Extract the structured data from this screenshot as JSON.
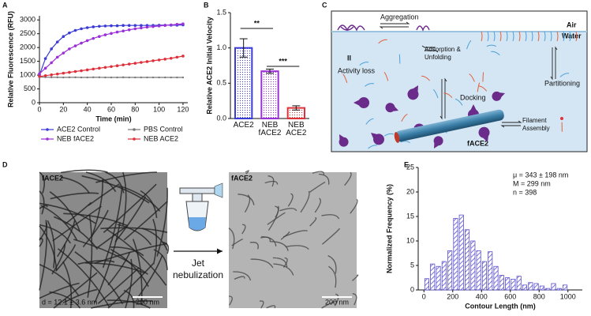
{
  "chart_data": [
    {
      "type": "line",
      "panel": "A",
      "x_label": "Time (min)",
      "y_label": "Relative Fluorescence (RFU)",
      "x": [
        0,
        5,
        10,
        15,
        20,
        25,
        30,
        35,
        40,
        45,
        50,
        55,
        60,
        65,
        70,
        75,
        80,
        85,
        90,
        95,
        100,
        105,
        110,
        115,
        120
      ],
      "series": [
        {
          "name": "ACE2 Control",
          "color": "#3b3bd6",
          "values": [
            1000,
            1600,
            1950,
            2200,
            2400,
            2530,
            2620,
            2680,
            2720,
            2750,
            2770,
            2780,
            2790,
            2790,
            2800,
            2800,
            2800,
            2800,
            2800,
            2800,
            2810,
            2810,
            2810,
            2810,
            2820
          ]
        },
        {
          "name": "NEB fACE2",
          "color": "#9b30d9",
          "values": [
            1050,
            1250,
            1450,
            1650,
            1800,
            1950,
            2060,
            2160,
            2250,
            2330,
            2400,
            2460,
            2510,
            2560,
            2600,
            2640,
            2680,
            2710,
            2740,
            2760,
            2780,
            2800,
            2820,
            2840,
            2860
          ]
        },
        {
          "name": "PBS Control",
          "color": "#777777",
          "values": [
            930,
            925,
            920,
            920,
            915,
            920,
            920,
            915,
            915,
            920,
            920,
            915,
            915,
            915,
            920,
            915,
            915,
            915,
            915,
            915,
            915,
            915,
            915,
            915,
            915
          ]
        },
        {
          "name": "NEB ACE2",
          "color": "#e0303a",
          "values": [
            950,
            980,
            1010,
            1040,
            1070,
            1100,
            1130,
            1160,
            1190,
            1220,
            1250,
            1280,
            1310,
            1340,
            1370,
            1400,
            1430,
            1460,
            1490,
            1520,
            1550,
            1580,
            1610,
            1650,
            1690
          ]
        }
      ],
      "xlim": [
        0,
        124
      ],
      "xticks": [
        0,
        20,
        40,
        60,
        80,
        100,
        120
      ],
      "ylim": [
        0,
        3150
      ],
      "yticks": [
        0,
        500,
        1000,
        1500,
        2000,
        2500,
        3000
      ]
    },
    {
      "type": "bar",
      "panel": "B",
      "y_label": "Relative ACE2 Initial Velocity",
      "categories": [
        "ACE2",
        "NEB fACE2",
        "NEB ACE2"
      ],
      "values": [
        1.0,
        0.67,
        0.15
      ],
      "errors": [
        0.13,
        0.03,
        0.03
      ],
      "colors": [
        "#3b3bd6",
        "#9b30d9",
        "#e0303a"
      ],
      "significance": [
        "**",
        "***"
      ],
      "ylim": [
        0,
        1.5
      ],
      "yticks": [
        {
          "value": 0,
          "label": "0.0"
        },
        0.5,
        {
          "value": 1,
          "label": "1.0"
        },
        1.5
      ]
    },
    {
      "type": "histogram",
      "panel": "E",
      "x_label": "Contour Length (nm)",
      "y_label": "Normalized Frequency (%)",
      "bins": [
        0,
        40,
        80,
        120,
        160,
        200,
        240,
        280,
        320,
        360,
        400,
        440,
        480,
        520,
        560,
        600,
        640,
        680,
        720,
        760,
        800,
        840,
        880,
        920,
        960,
        1000
      ],
      "values": [
        2.3,
        5.3,
        4.8,
        5.8,
        8.0,
        14.6,
        15.3,
        12.3,
        10.0,
        8.0,
        5.8,
        7.8,
        4.8,
        3.0,
        2.5,
        2.2,
        2.8,
        1.0,
        1.5,
        1.3,
        0.8,
        0.3,
        1.3,
        0.3,
        1.0
      ],
      "color": "#5a4fcf",
      "annotations": [
        "μ = 343 ± 198 nm",
        "M = 299 nm",
        "n = 398"
      ],
      "xlim": [
        -40,
        1100
      ],
      "xticks": [
        0,
        200,
        400,
        600,
        800,
        1000
      ],
      "ylim": [
        0,
        25
      ],
      "yticks": [
        0,
        5,
        10,
        15,
        20,
        25
      ]
    }
  ],
  "diagram": {
    "panel": "C",
    "air": "Air",
    "water": "Water",
    "aggregation": "Aggregation",
    "inactive_mark": "II",
    "activity_loss": "Activity loss",
    "adsorption": "Adsorption & Unfolding",
    "docking": "Docking",
    "partitioning": "Partitioning",
    "filament_assembly": "Filament Assembly",
    "filament": "fACE2"
  },
  "micrographs": {
    "panel": "D",
    "left": {
      "title": "fACE2",
      "diameter": "d = 12.1 ± 3.6 nm",
      "scale_bar": "200 nm"
    },
    "right": {
      "title": "fACE2",
      "scale_bar": "200 nm"
    },
    "process": "Jet nebulization"
  }
}
